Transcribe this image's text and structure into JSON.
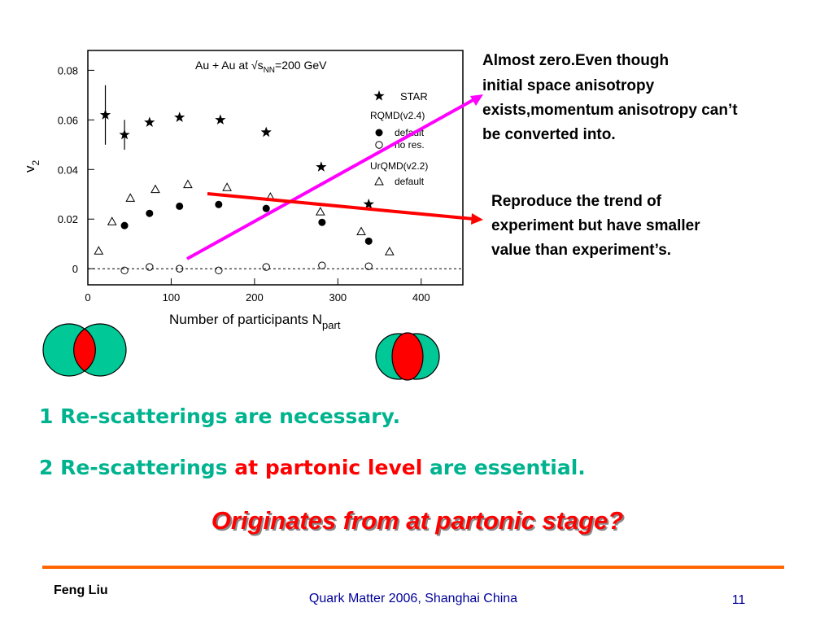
{
  "chart_data": {
    "type": "scatter",
    "title": {
      "main": "Au + Au at √s",
      "sub": "NN",
      "rest": "=200 GeV"
    },
    "x_label": {
      "main": "Number of participants N",
      "sub": "part"
    },
    "y_label": {
      "main": "v",
      "sub": "2"
    },
    "xlim": [
      0,
      450
    ],
    "xticks": [
      0,
      100,
      200,
      300,
      400
    ],
    "ylim": [
      -0.0065,
      0.088
    ],
    "yticks": [
      0,
      0.02,
      0.04,
      0.06,
      0.08
    ],
    "zero_line": true,
    "legend_groups": [
      "RQMD(v2.4)",
      "UrQMD(v2.2)"
    ],
    "series": [
      {
        "name": "STAR",
        "marker": "star",
        "color": "#000000",
        "x": [
          21,
          44,
          74,
          110,
          159,
          214,
          280,
          337
        ],
        "values": [
          0.062,
          0.054,
          0.059,
          0.061,
          0.06,
          0.055,
          0.041,
          0.026
        ],
        "errors": [
          0.012,
          0.006,
          0,
          0,
          0,
          0,
          0,
          0
        ]
      },
      {
        "name": "default",
        "group": 0,
        "marker": "filled-circle",
        "color": "#000000",
        "x": [
          44,
          74,
          110,
          157,
          214,
          281,
          337
        ],
        "values": [
          0.0174,
          0.0223,
          0.0252,
          0.0259,
          0.0243,
          0.0187,
          0.0111
        ]
      },
      {
        "name": "no res.",
        "group": 0,
        "marker": "open-circle",
        "color": "#000000",
        "x": [
          44,
          74,
          110,
          157,
          214,
          281,
          337
        ],
        "values": [
          -0.0007,
          0.0007,
          0,
          -0.0007,
          0.0007,
          0.0013,
          0.001
        ]
      },
      {
        "name": "default",
        "group": 1,
        "marker": "open-triangle",
        "color": "#000000",
        "x": [
          13,
          29,
          51,
          81,
          120,
          167,
          219,
          279,
          328,
          362
        ],
        "values": [
          0.0072,
          0.019,
          0.0285,
          0.032,
          0.034,
          0.0328,
          0.0289,
          0.023,
          0.015,
          0.0069
        ]
      }
    ]
  },
  "annotations": [
    "Almost zero.Even though",
    "initial space anisotropy",
    "exists,momentum anisotropy can’t",
    "be converted into."
  ],
  "annotations2": [
    "Reproduce the trend of",
    "experiment but have smaller",
    "value than experiment’s."
  ],
  "point1": "1 Re-scatterings are necessary.",
  "point2": {
    "a": "2 Re-scatterings ",
    "b": "at partonic level",
    "c": " are essential."
  },
  "question": "Originates from at partonic stage?",
  "footer": {
    "author": "Feng Liu",
    "conference": "Quark Matter 2006,  Shanghai  China",
    "page": "11"
  }
}
